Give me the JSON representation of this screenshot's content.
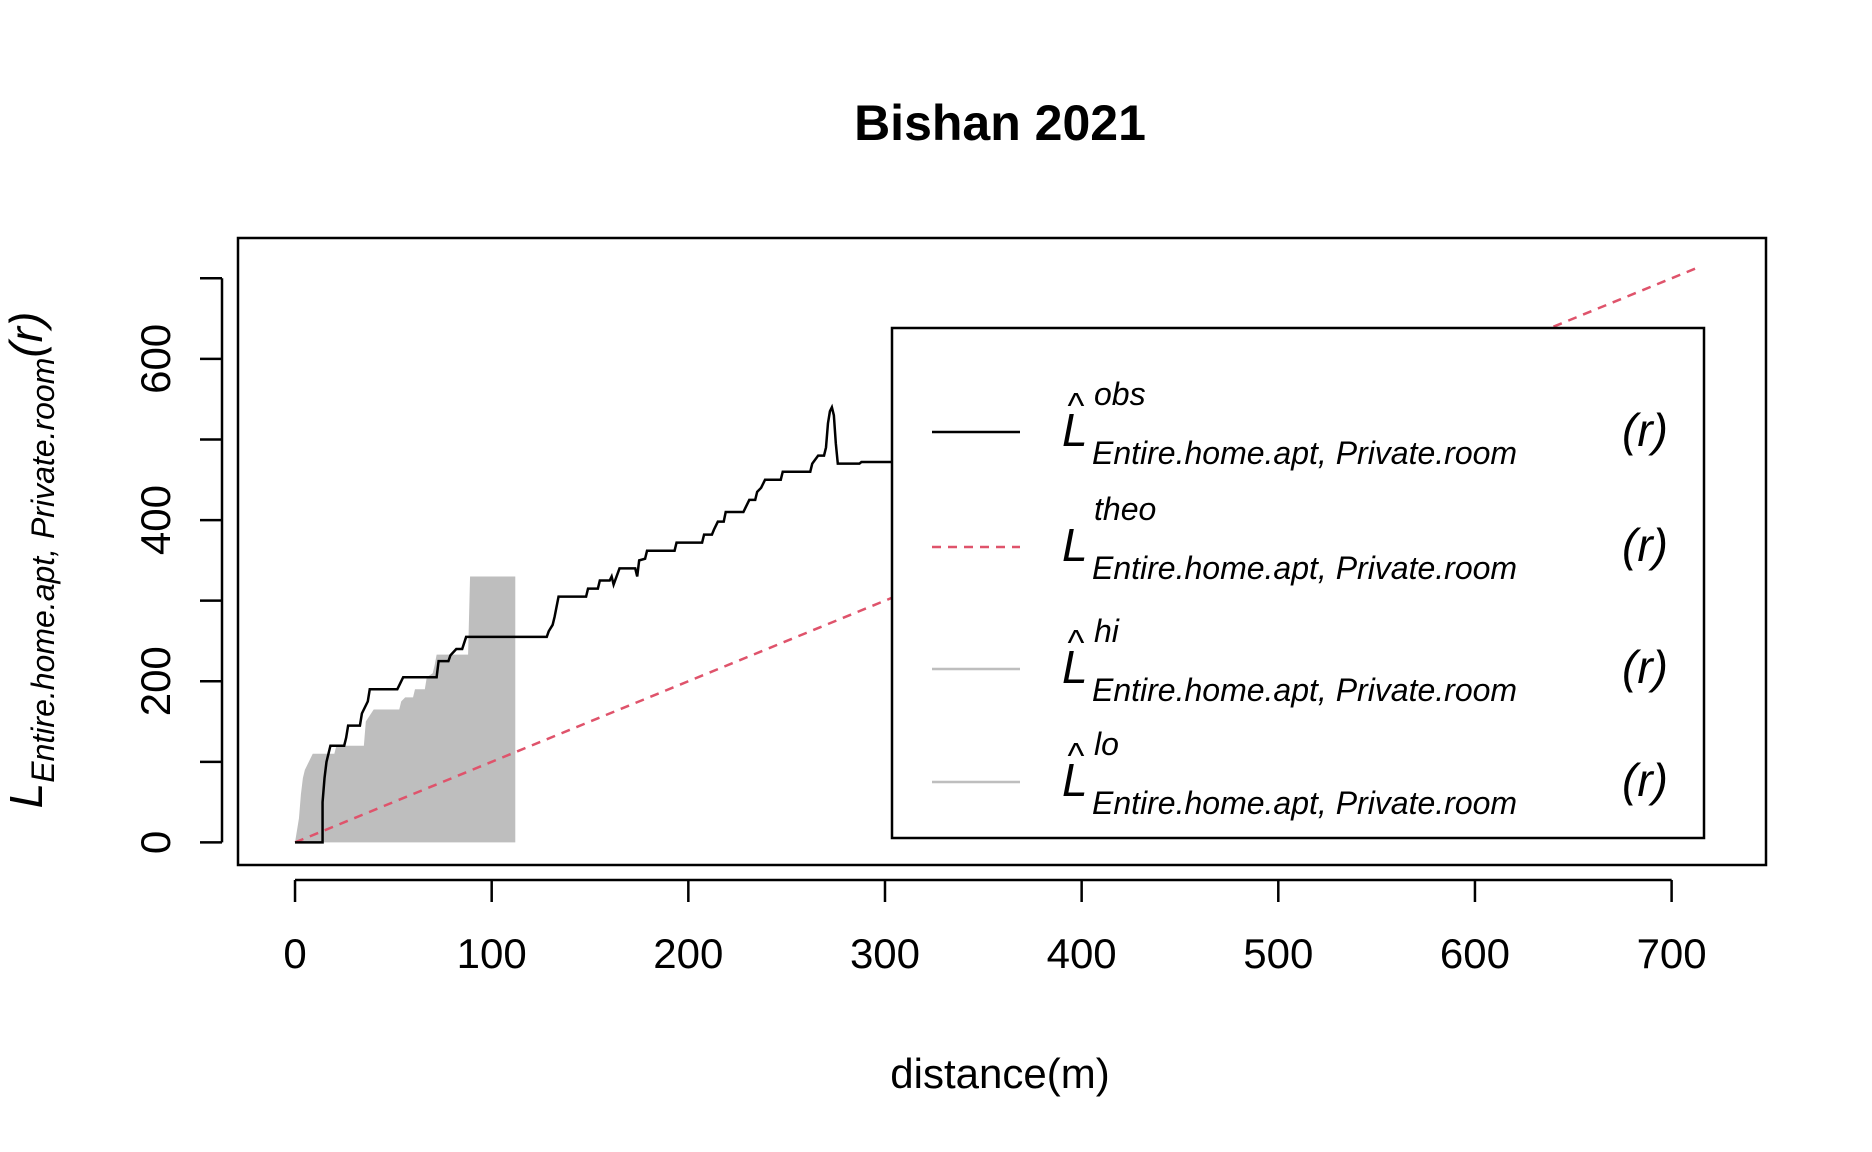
{
  "chart_data": {
    "type": "line",
    "title": "Bishan 2021",
    "xlabel": "distance(m)",
    "ylabel": {
      "main": "L",
      "sub": "Entire.home.apt, Private.room",
      "arg": "(r)"
    },
    "xlim": [
      -29,
      748
    ],
    "ylim": [
      -28,
      750
    ],
    "xticks": [
      0,
      100,
      200,
      300,
      400,
      500,
      600,
      700
    ],
    "yticks": [
      0,
      100,
      200,
      300,
      400,
      500,
      600,
      700
    ],
    "ytick_labels": [
      "0",
      "",
      "200",
      "",
      "400",
      "",
      "600",
      ""
    ],
    "grid": false,
    "legend_position": "right",
    "legend": [
      {
        "hat": "^",
        "main": "L",
        "sup": "obs",
        "sub": "Entire.home.apt, Private.room",
        "arg": "(r)",
        "color": "#000000",
        "style": "solid"
      },
      {
        "hat": "",
        "main": "L",
        "sup": "theo",
        "sub": "Entire.home.apt, Private.room",
        "arg": "(r)",
        "color": "#DF536B",
        "style": "dashed"
      },
      {
        "hat": "^",
        "main": "L",
        "sup": "hi",
        "sub": "Entire.home.apt, Private.room",
        "arg": "(r)",
        "color": "#BEBEBE",
        "style": "solid"
      },
      {
        "hat": "^",
        "main": "L",
        "sup": "lo",
        "sub": "Entire.home.apt, Private.room",
        "arg": "(r)",
        "color": "#BEBEBE",
        "style": "solid"
      }
    ],
    "series": [
      {
        "name": "obs",
        "color": "#000000",
        "points": [
          [
            0,
            0
          ],
          [
            14,
            0
          ],
          [
            14,
            50
          ],
          [
            15,
            80
          ],
          [
            16,
            100
          ],
          [
            18,
            120
          ],
          [
            25,
            120
          ],
          [
            26,
            130
          ],
          [
            27,
            145
          ],
          [
            33,
            145
          ],
          [
            34,
            160
          ],
          [
            37,
            175
          ],
          [
            38,
            190
          ],
          [
            52,
            190
          ],
          [
            53,
            195
          ],
          [
            55,
            205
          ],
          [
            72,
            205
          ],
          [
            73,
            225
          ],
          [
            78,
            225
          ],
          [
            79,
            232
          ],
          [
            82,
            240
          ],
          [
            85,
            240
          ],
          [
            87,
            255
          ],
          [
            128,
            255
          ],
          [
            129,
            262
          ],
          [
            131,
            270
          ],
          [
            132,
            280
          ],
          [
            134,
            305
          ],
          [
            148,
            305
          ],
          [
            149,
            315
          ],
          [
            154,
            315
          ],
          [
            155,
            325
          ],
          [
            160,
            325
          ],
          [
            161,
            330
          ],
          [
            162,
            320
          ],
          [
            165,
            340
          ],
          [
            173,
            340
          ],
          [
            174,
            330
          ],
          [
            175,
            350
          ],
          [
            178,
            352
          ],
          [
            179,
            362
          ],
          [
            193,
            362
          ],
          [
            194,
            372
          ],
          [
            207,
            372
          ],
          [
            208,
            382
          ],
          [
            212,
            382
          ],
          [
            213,
            388
          ],
          [
            215,
            398
          ],
          [
            218,
            398
          ],
          [
            219,
            410
          ],
          [
            228,
            410
          ],
          [
            229,
            415
          ],
          [
            231,
            425
          ],
          [
            234,
            425
          ],
          [
            235,
            435
          ],
          [
            237,
            440
          ],
          [
            239,
            450
          ],
          [
            247,
            450
          ],
          [
            248,
            460
          ],
          [
            262,
            460
          ],
          [
            263,
            470
          ],
          [
            266,
            480
          ],
          [
            269,
            480
          ],
          [
            270,
            490
          ],
          [
            271,
            520
          ],
          [
            272,
            535
          ],
          [
            273,
            540
          ],
          [
            274,
            530
          ],
          [
            275,
            495
          ],
          [
            276,
            470
          ],
          [
            287,
            470
          ],
          [
            288,
            472
          ],
          [
            352,
            472
          ],
          [
            353,
            485
          ],
          [
            355,
            495
          ],
          [
            357,
            490
          ],
          [
            358,
            475
          ],
          [
            372,
            475
          ],
          [
            373,
            500
          ],
          [
            385,
            500
          ],
          [
            386,
            515
          ],
          [
            419,
            515
          ],
          [
            420,
            500
          ],
          [
            423,
            500
          ],
          [
            424,
            530
          ],
          [
            425,
            550
          ],
          [
            459,
            550
          ]
        ]
      },
      {
        "name": "theo",
        "color": "#DF536B",
        "points": [
          [
            0,
            0
          ],
          [
            715,
            715
          ]
        ]
      },
      {
        "name": "hi",
        "color": "#BEBEBE",
        "points": [
          [
            0,
            0
          ],
          [
            2,
            30
          ],
          [
            3,
            60
          ],
          [
            4,
            80
          ],
          [
            5,
            90
          ],
          [
            7,
            100
          ],
          [
            9,
            110
          ],
          [
            20,
            110
          ],
          [
            21,
            120
          ],
          [
            35,
            120
          ],
          [
            36,
            150
          ],
          [
            40,
            165
          ],
          [
            53,
            165
          ],
          [
            54,
            175
          ],
          [
            56,
            180
          ],
          [
            60,
            180
          ],
          [
            61,
            190
          ],
          [
            66,
            190
          ],
          [
            67,
            205
          ],
          [
            70,
            210
          ],
          [
            71,
            220
          ],
          [
            72,
            233
          ],
          [
            88,
            233
          ],
          [
            89,
            330
          ],
          [
            112,
            330
          ],
          [
            112,
            0
          ]
        ]
      },
      {
        "name": "lo",
        "color": "#BEBEBE",
        "points": [
          [
            0,
            0
          ],
          [
            112,
            0
          ]
        ]
      }
    ]
  }
}
